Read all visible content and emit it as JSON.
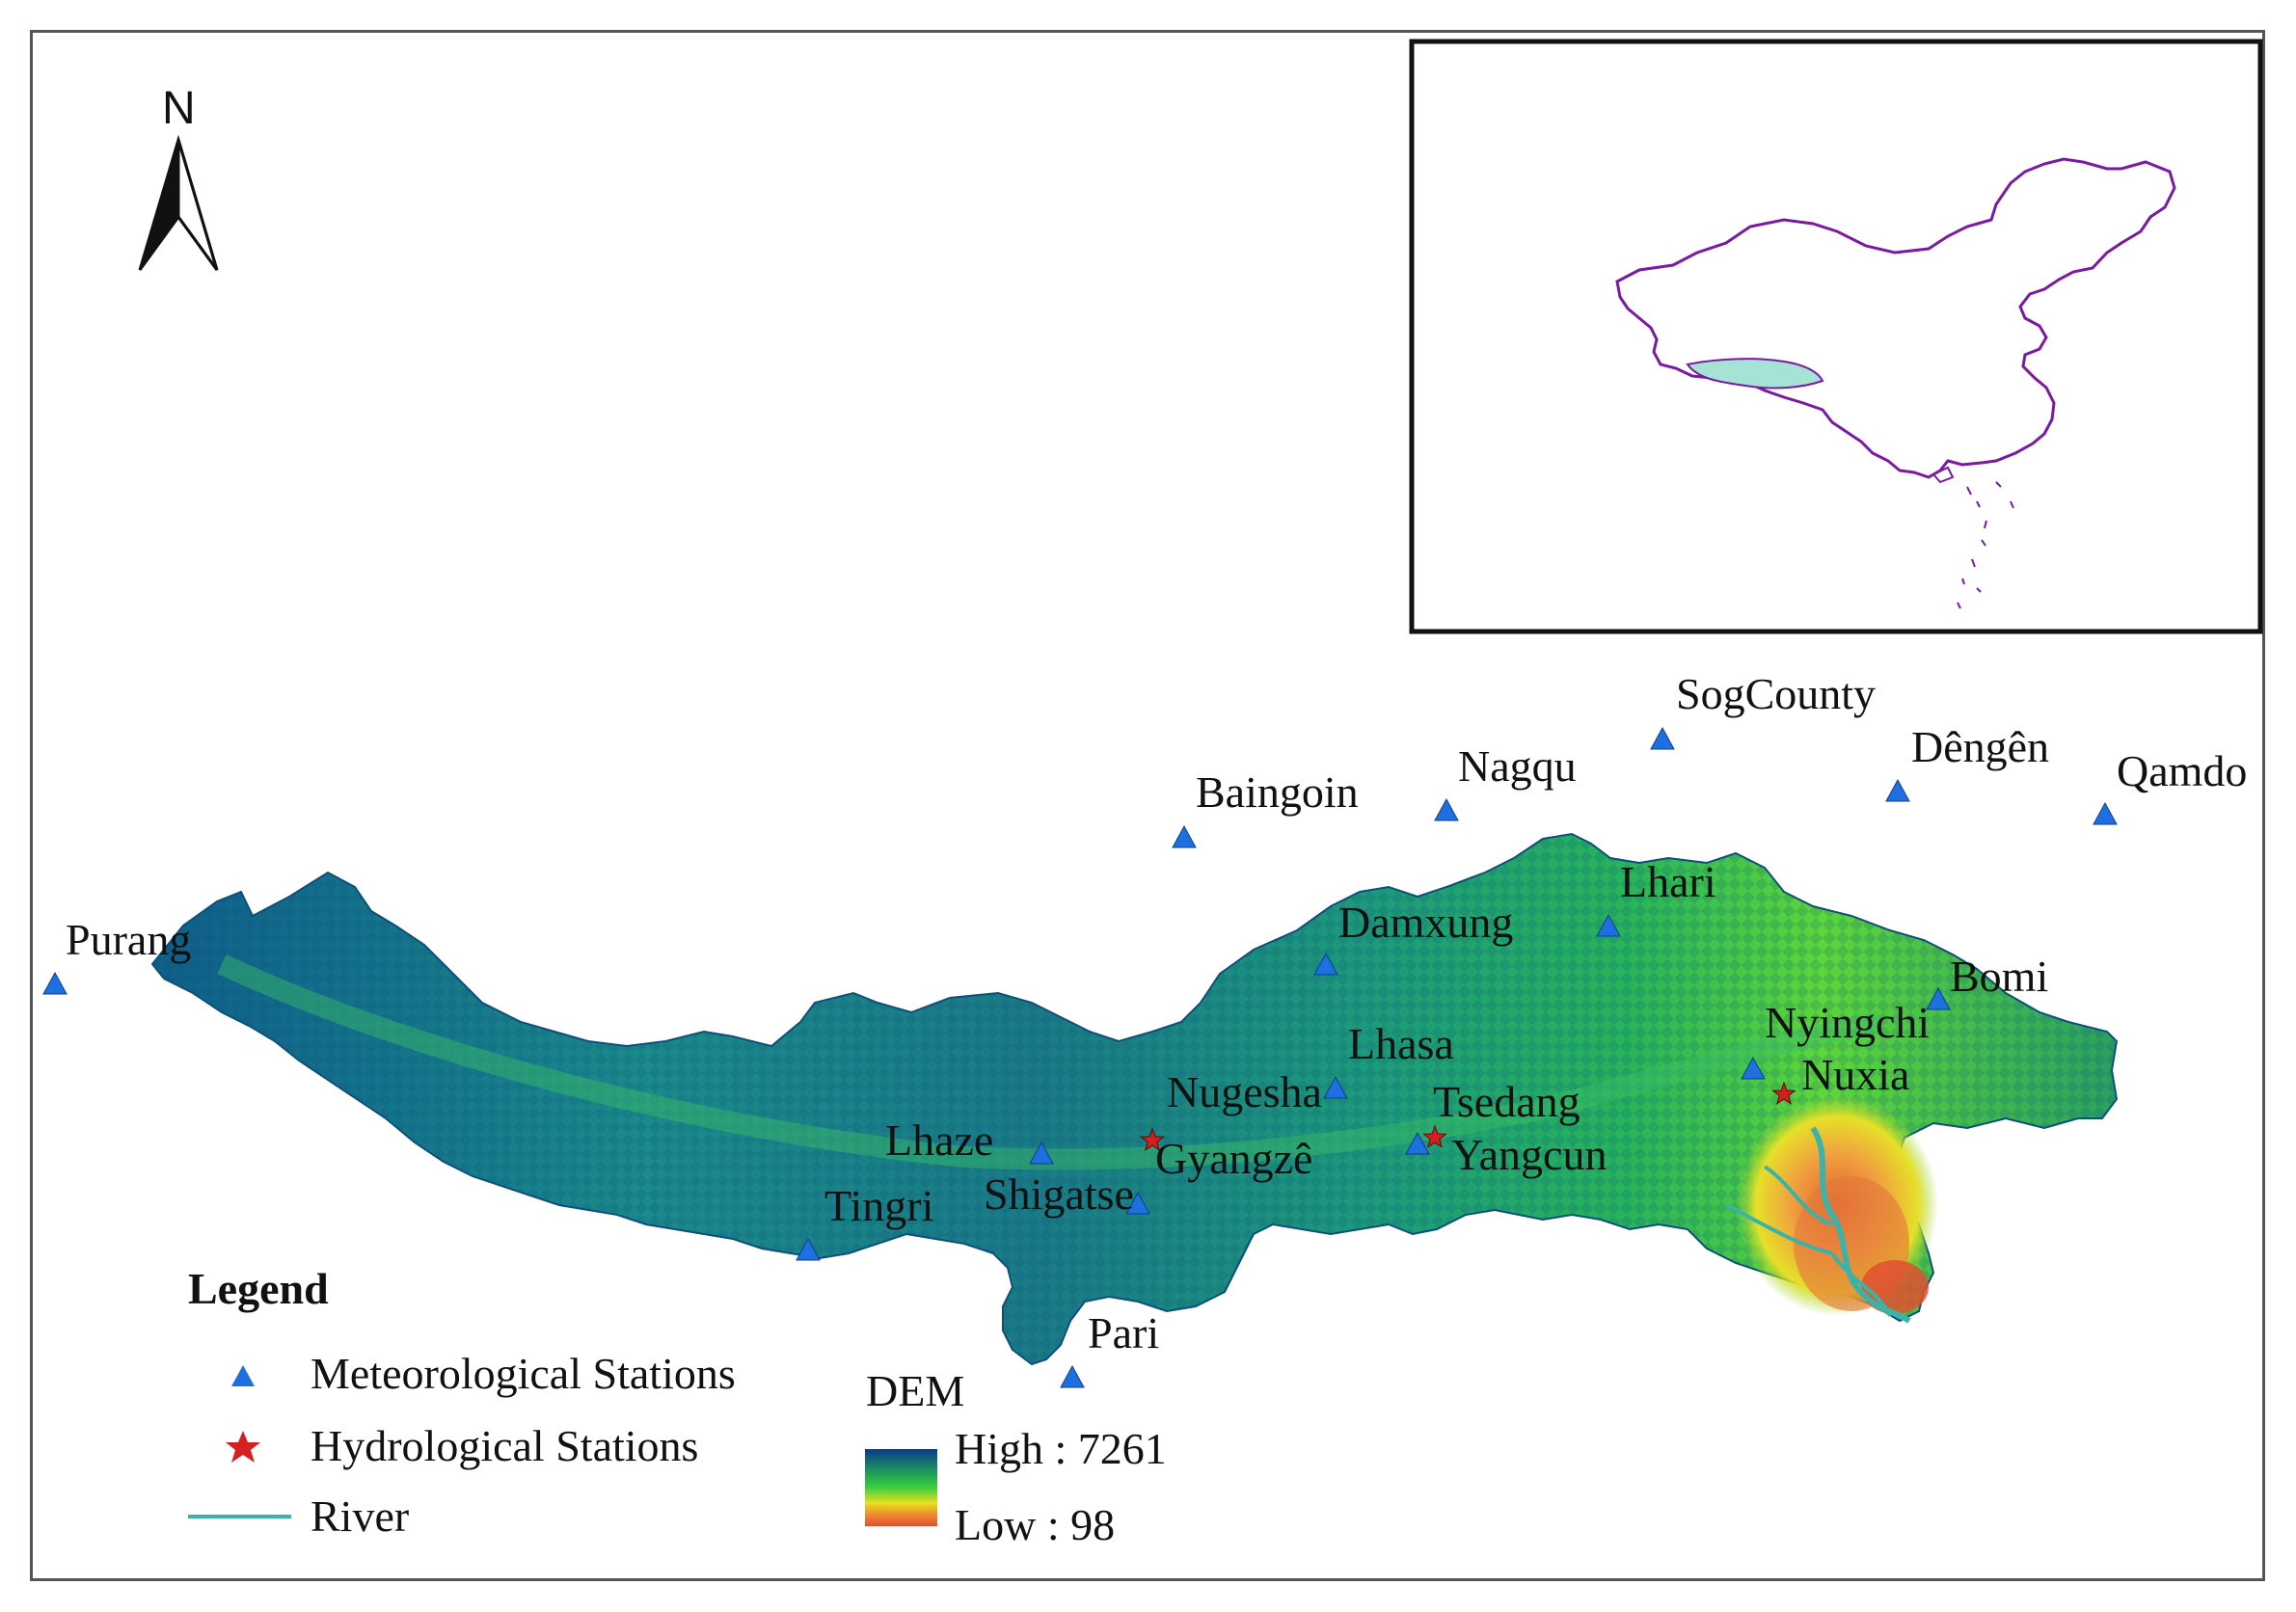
{
  "north_arrow": {
    "label": "N",
    "icon": "north-arrow-icon"
  },
  "stations": {
    "meteorological": [
      {
        "name": "Purang"
      },
      {
        "name": "Baingoin"
      },
      {
        "name": "Nagqu"
      },
      {
        "name": "SogCounty"
      },
      {
        "name": "Dêngên"
      },
      {
        "name": "Qamdo"
      },
      {
        "name": "Lhari"
      },
      {
        "name": "Damxung"
      },
      {
        "name": "Bomi"
      },
      {
        "name": "Nyingchi"
      },
      {
        "name": "Lhasa"
      },
      {
        "name": "Tsedang"
      },
      {
        "name": "Lhaze"
      },
      {
        "name": "Shigatse"
      },
      {
        "name": "Tingri"
      },
      {
        "name": "Pari"
      }
    ],
    "hydrological": [
      {
        "name": "Nugesha"
      },
      {
        "name": "Gyangzê"
      },
      {
        "name": "Yangcun"
      },
      {
        "name": "Nuxia"
      }
    ]
  },
  "legend": {
    "title": "Legend",
    "items": [
      {
        "label": "Meteorological Stations",
        "icon": "triangle-icon",
        "color": "#1e6fe0"
      },
      {
        "label": "Hydrological Stations",
        "icon": "star-icon",
        "color": "#d42020"
      },
      {
        "label": "River",
        "icon": "line-icon",
        "color": "#3bb3a8"
      }
    ],
    "dem": {
      "title": "DEM",
      "high_label": "High : 7261",
      "low_label": "Low : 98",
      "high_value": 7261,
      "low_value": 98,
      "colors": [
        "#0a3a8c",
        "#1e9a5a",
        "#3ccf3c",
        "#e8e020",
        "#f08a30",
        "#e05030"
      ]
    }
  },
  "inset": {
    "icon": "china-outline-icon",
    "outline_color": "#7a1aa0",
    "highlight_color": "#a6e3d6"
  }
}
